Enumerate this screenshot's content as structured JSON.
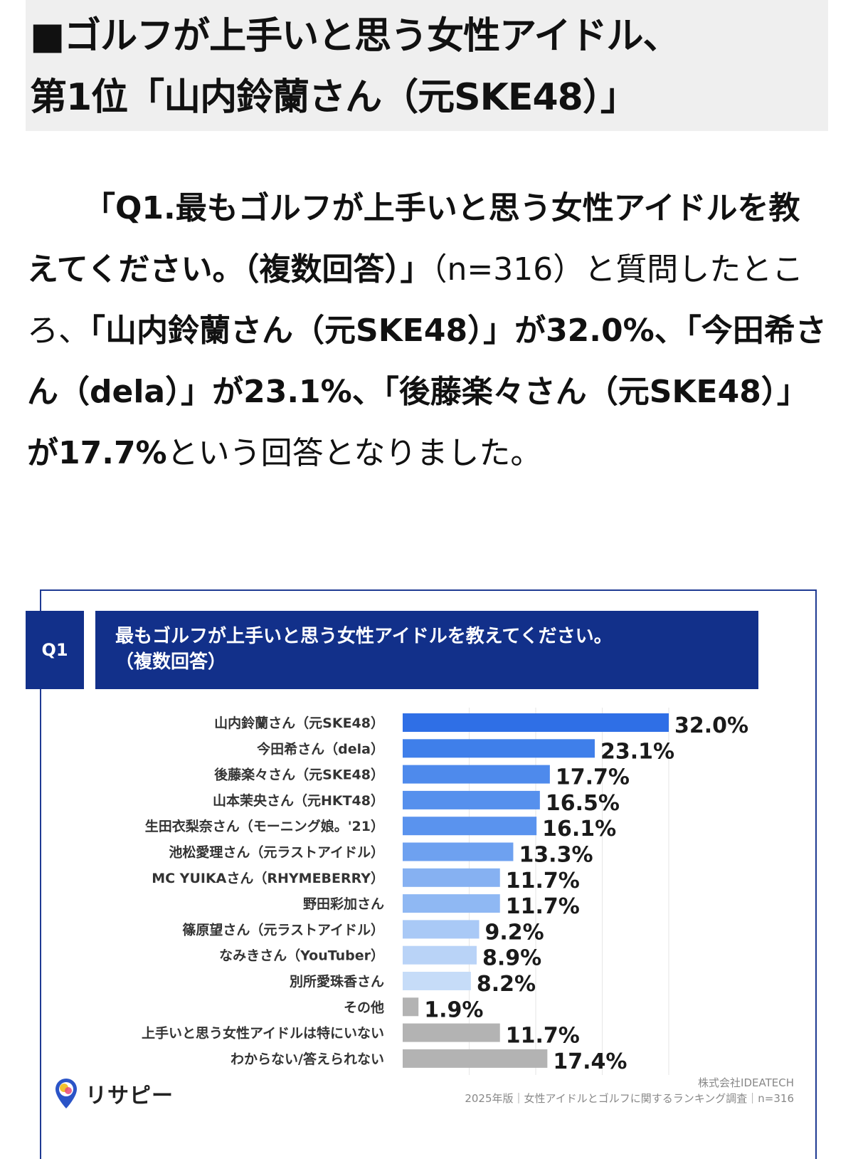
{
  "headline": {
    "line1": "■ゴルフが上手いと思う女性アイドル、",
    "line2": "第1位「山内鈴蘭さん（元SKE48）」"
  },
  "article": {
    "q_bold": "「Q1.最もゴルフが上手いと思う女性アイドルを教えてください。（複数回答）」",
    "seg1": "（n=316）と質問したところ、",
    "b1": "「山内鈴蘭さん（元SKE48）」が32.0%、「今田希さん（dela）」が23.1%、「後藤楽々さん（元SKE48）」が17.7%",
    "seg2": "という回答となりました。"
  },
  "chart_header": {
    "q_label": "Q1",
    "title_line1": "最もゴルフが上手いと思う女性アイドルを教えてください。",
    "title_line2": "（複数回答）"
  },
  "chart_data": {
    "type": "bar",
    "orientation": "horizontal",
    "categories": [
      "山内鈴蘭さん（元SKE48）",
      "今田希さん（dela）",
      "後藤楽々さん（元SKE48）",
      "山本茉央さん（元HKT48）",
      "生田衣梨奈さん（モーニング娘。'21）",
      "池松愛理さん（元ラストアイドル）",
      "MC YUIKAさん（RHYMEBERRY）",
      "野田彩加さん",
      "篠原望さん（元ラストアイドル）",
      "なみきさん（YouTuber）",
      "別所愛珠香さん",
      "その他",
      "上手いと思う女性アイドルは特にいない",
      "わからない/答えられない"
    ],
    "values": [
      32.0,
      23.1,
      17.7,
      16.5,
      16.1,
      13.3,
      11.7,
      11.7,
      9.2,
      8.9,
      8.2,
      1.9,
      11.7,
      17.4
    ],
    "value_labels": [
      "32.0%",
      "23.1%",
      "17.7%",
      "16.5%",
      "16.1%",
      "13.3%",
      "11.7%",
      "11.7%",
      "9.2%",
      "8.9%",
      "8.2%",
      "1.9%",
      "11.7%",
      "17.4%"
    ],
    "colors": [
      "#2f6fe6",
      "#3f7fea",
      "#4e8aec",
      "#5690ed",
      "#5a93ee",
      "#6ea1f0",
      "#86b1f2",
      "#8fb8f3",
      "#a9c9f6",
      "#b9d3f7",
      "#c6dcf8",
      "#b3b3b3",
      "#b3b3b3",
      "#b3b3b3"
    ],
    "xlim": [
      0,
      32.0
    ],
    "grid": true,
    "legend": "none"
  },
  "brand": {
    "name": "リサピー"
  },
  "credit": {
    "company": "株式会社IDEATECH",
    "note": "2025年版｜女性アイドルとゴルフに関するランキング調査｜n=316"
  }
}
